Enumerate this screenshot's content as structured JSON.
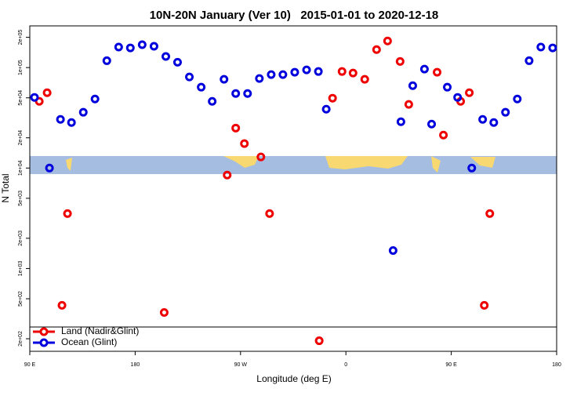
{
  "chart_data": {
    "type": "scatter",
    "title": "10N-20N January (Ver 10)   2015-01-01 to 2020-12-18",
    "x_label": "Longitude (deg E)",
    "y_label": "N Total",
    "log_y": true,
    "legend": "lower left",
    "xlim": [
      90,
      540
    ],
    "xticks": [
      {
        "value": 90,
        "label": "90 E"
      },
      {
        "value": 180,
        "label": "180"
      },
      {
        "value": 270,
        "label": "90 W"
      },
      {
        "value": 360,
        "label": "0"
      },
      {
        "value": 450,
        "label": "90 E"
      },
      {
        "value": 540,
        "label": "180"
      }
    ],
    "ylim": [
      150,
      260000
    ],
    "yticks": [
      {
        "value": 200,
        "label": "2e+02"
      },
      {
        "value": 500,
        "label": "5e+02"
      },
      {
        "value": 1000,
        "label": "1e+03"
      },
      {
        "value": 2000,
        "label": "2e+03"
      },
      {
        "value": 5000,
        "label": "5e+03"
      },
      {
        "value": 10000,
        "label": "1e+04"
      },
      {
        "value": 20000,
        "label": "2e+04"
      },
      {
        "value": 50000,
        "label": "5e+04"
      },
      {
        "value": 100000,
        "label": "1e+05"
      },
      {
        "value": 200000,
        "label": "2e+05"
      }
    ],
    "series": [
      {
        "name": "Land (Nadir&Glint)",
        "color": "#ee0000",
        "x": [
          98.1,
          104.8,
          122.2,
          117.5,
          204.8,
          258.6,
          265.9,
          273.3,
          287.4,
          294.8,
          337.2,
          348.6,
          356.7,
          366.1,
          376.1,
          386.2,
          395.6,
          406.3,
          413.7,
          437.9,
          443.3,
          458.0,
          465.4,
          482.9,
          478.2
        ],
        "values": [
          46100,
          56200,
          3520,
          430,
          365,
          8510,
          25000,
          17500,
          12900,
          3520,
          191,
          49600,
          91400,
          88200,
          76400,
          151000,
          184000,
          115000,
          43000,
          89800,
          21300,
          46100,
          56200,
          3520,
          430
        ]
      },
      {
        "name": "Ocean (Glint)",
        "color": "#0000dd",
        "x": [
          94.0,
          106.8,
          116.2,
          125.6,
          135.7,
          145.7,
          155.8,
          165.9,
          175.9,
          186.0,
          196.1,
          206.2,
          216.2,
          226.3,
          236.4,
          245.8,
          255.9,
          265.9,
          276.0,
          286.1,
          296.2,
          306.2,
          316.3,
          326.4,
          336.5,
          343.2,
          400.3,
          407.0,
          417.1,
          427.1,
          433.2,
          446.6,
          455.4,
          467.5,
          476.8,
          486.3,
          496.3,
          506.4,
          516.5,
          526.5,
          536.6
        ],
        "values": [
          50500,
          10000,
          30500,
          28400,
          35900,
          48700,
          117000,
          160000,
          157000,
          169000,
          163000,
          129000,
          113000,
          80600,
          63800,
          46100,
          76400,
          55200,
          55200,
          77800,
          85100,
          85100,
          89800,
          94800,
          91400,
          38500,
          1510,
          28900,
          66100,
          96500,
          27400,
          63800,
          50500,
          10000,
          30500,
          28400,
          35900,
          48700,
          117000,
          160000,
          157000
        ]
      }
    ]
  }
}
